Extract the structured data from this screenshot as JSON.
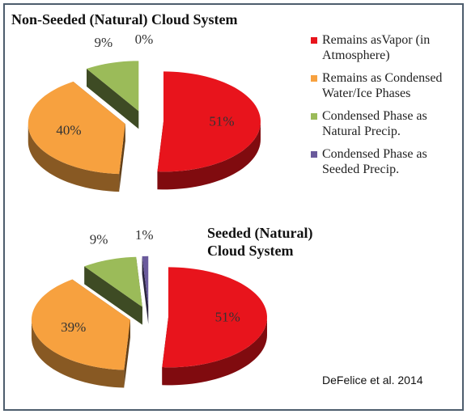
{
  "legend": {
    "labels": [
      "Remains asVapor (in Atmosphere)",
      "Remains as Condensed Water/Ice Phases",
      "Condensed Phase as Natural Precip.",
      "Condensed Phase as Seeded Precip."
    ],
    "colors": [
      "#e8141c",
      "#f7a13f",
      "#9bbb59",
      "#6a5a9c"
    ]
  },
  "credit": "DeFelice et al. 2014",
  "chart_data": [
    {
      "type": "pie",
      "title": "Non-Seeded (Natural) Cloud System",
      "values": [
        51,
        40,
        9,
        0
      ],
      "value_labels": [
        "51%",
        "40%",
        "9%",
        "0%"
      ]
    },
    {
      "type": "pie",
      "title": "Seeded (Natural) Cloud System",
      "values": [
        51,
        39,
        9,
        1
      ],
      "value_labels": [
        "51%",
        "39%",
        "9%",
        "1%"
      ]
    }
  ]
}
